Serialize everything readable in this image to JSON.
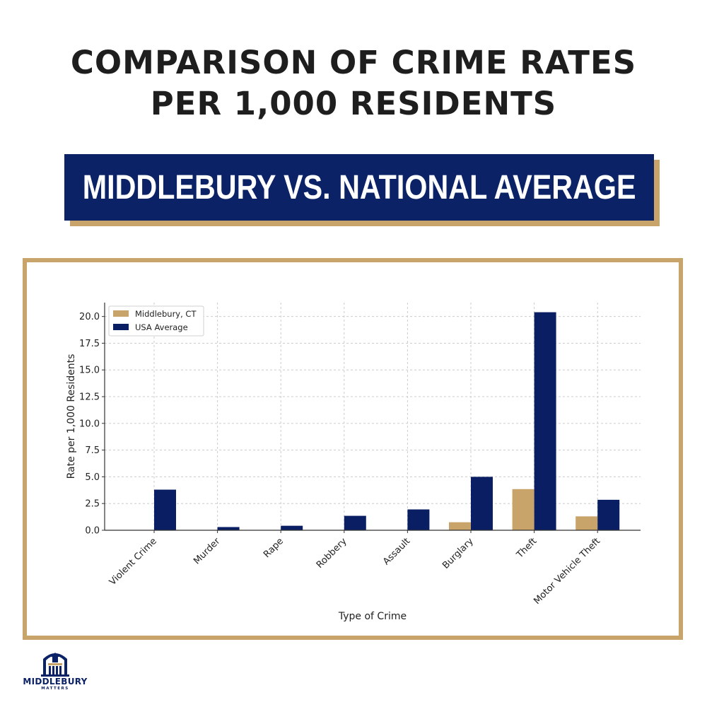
{
  "header": {
    "title_line1": "COMPARISON OF CRIME RATES",
    "title_line2": "PER 1,000 RESIDENTS",
    "banner": "MIDDLEBURY VS. NATIONAL AVERAGE"
  },
  "colors": {
    "navy": "#0c2266",
    "gold": "#c9a46a",
    "middlebury_series": "#c9a46a",
    "usa_series": "#0a1f63"
  },
  "logo": {
    "name": "MIDDLEBURY",
    "sub": "MATTERS",
    "icon": "town-hall-logo-icon"
  },
  "chart_data": {
    "type": "bar",
    "categories": [
      "Violent Crime",
      "Murder",
      "Rape",
      "Robbery",
      "Assault",
      "Burglary",
      "Theft",
      "Motor Vehicle Theft"
    ],
    "series": [
      {
        "name": "Middlebury, CT",
        "values": [
          0,
          0,
          0,
          0,
          0,
          0.75,
          3.85,
          1.3
        ]
      },
      {
        "name": "USA Average",
        "values": [
          3.8,
          0.3,
          0.42,
          1.35,
          1.95,
          5.0,
          20.4,
          2.85
        ]
      }
    ],
    "xlabel": "Type of Crime",
    "ylabel": "Rate per 1,000 Residents",
    "ylim": [
      0,
      21.3
    ],
    "yticks": [
      0,
      2.5,
      5,
      7.5,
      10,
      12.5,
      15,
      17.5,
      20
    ],
    "ytick_labels": [
      "0.0",
      "2.5",
      "5.0",
      "7.5",
      "10.0",
      "12.5",
      "15.0",
      "17.5",
      "20.0"
    ],
    "grid": true,
    "legend_position": "top-left"
  }
}
